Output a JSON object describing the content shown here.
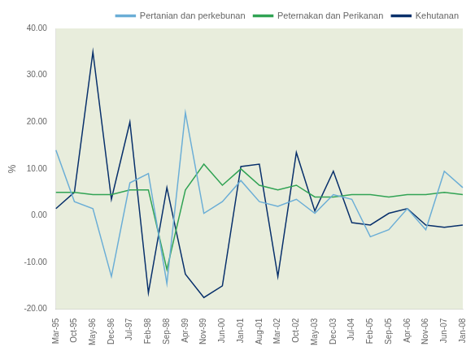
{
  "chart_data": {
    "type": "line",
    "title": "",
    "y_label": "%",
    "categories": [
      "Mar-95",
      "Oct-95",
      "May-96",
      "Dec-96",
      "Jul-97",
      "Feb-98",
      "Sep-98",
      "Apr-99",
      "Nov-99",
      "Jun-00",
      "Jan-01",
      "Aug-01",
      "Mar-02",
      "Oct-02",
      "May-03",
      "Dec-03",
      "Jul-04",
      "Feb-05",
      "Sep-05",
      "Apr-06",
      "Nov-06",
      "Jun-07",
      "Jan-08"
    ],
    "series": [
      {
        "name": "Pertanian dan perkebunan",
        "color": "#6baed6",
        "values": [
          14.0,
          3.0,
          1.5,
          -13.0,
          7.0,
          9.0,
          -14.5,
          22.0,
          0.5,
          3.0,
          7.5,
          3.0,
          2.0,
          3.5,
          0.5,
          4.5,
          3.5,
          -4.5,
          -3.0,
          1.5,
          -3.0,
          9.5,
          6.0
        ]
      },
      {
        "name": "Peternakan dan Perikanan",
        "color": "#31a354",
        "values": [
          5.0,
          5.0,
          4.5,
          4.5,
          5.5,
          5.5,
          -11.5,
          5.5,
          11.0,
          6.5,
          10.0,
          6.5,
          5.5,
          6.5,
          4.0,
          4.0,
          4.5,
          4.5,
          4.0,
          4.5,
          4.5,
          5.0,
          4.5
        ]
      },
      {
        "name": "Kehutanan",
        "color": "#08306b",
        "values": [
          1.5,
          5.0,
          35.0,
          3.5,
          20.0,
          -16.5,
          6.0,
          -12.5,
          -17.5,
          -15.0,
          10.5,
          11.0,
          -13.0,
          13.5,
          1.0,
          9.5,
          -1.5,
          -2.0,
          0.5,
          1.5,
          -2.0,
          -2.5,
          -2.0
        ]
      }
    ],
    "ylim": [
      -20,
      40
    ],
    "yticks": [
      {
        "value": -20,
        "label": "-20.00"
      },
      {
        "value": -10,
        "label": "-10.00"
      },
      {
        "value": 0,
        "label": "0.00"
      },
      {
        "value": 10,
        "label": "10.00"
      },
      {
        "value": 20,
        "label": "20.00"
      },
      {
        "value": 30,
        "label": "30.00"
      },
      {
        "value": 40,
        "label": "40.00"
      }
    ],
    "grid": false,
    "legend": "upper right"
  }
}
